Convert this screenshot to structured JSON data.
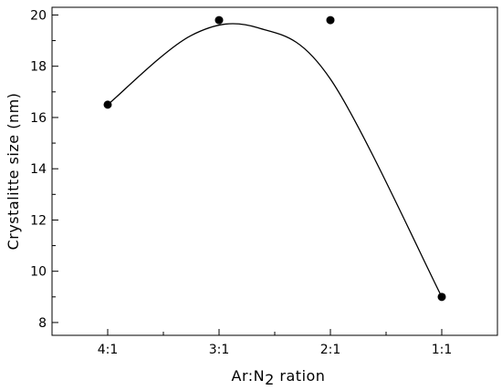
{
  "chart_data": {
    "type": "scatter",
    "title": "",
    "xlabel": "Ar:N2 ration",
    "xlabel_parts": {
      "prefix": "Ar:N",
      "subscript": "2",
      "suffix": " ration"
    },
    "ylabel": "Crystalitte size (nm)",
    "categories": [
      "4:1",
      "3:1",
      "2:1",
      "1:1"
    ],
    "series": [
      {
        "values": [
          16.5,
          19.8,
          19.8,
          9.0
        ]
      }
    ],
    "trend_curve": {
      "x": [
        0,
        0.75,
        1.35,
        2.0,
        3.0
      ],
      "y": [
        16.5,
        19.2,
        19.5,
        17.5,
        9.0
      ]
    },
    "ylim": [
      7.5,
      20.3
    ],
    "yticks": [
      8,
      10,
      12,
      14,
      16,
      18,
      20
    ],
    "grid": false,
    "legend": "none",
    "marker_color": "#000000",
    "line_color": "#000000"
  }
}
